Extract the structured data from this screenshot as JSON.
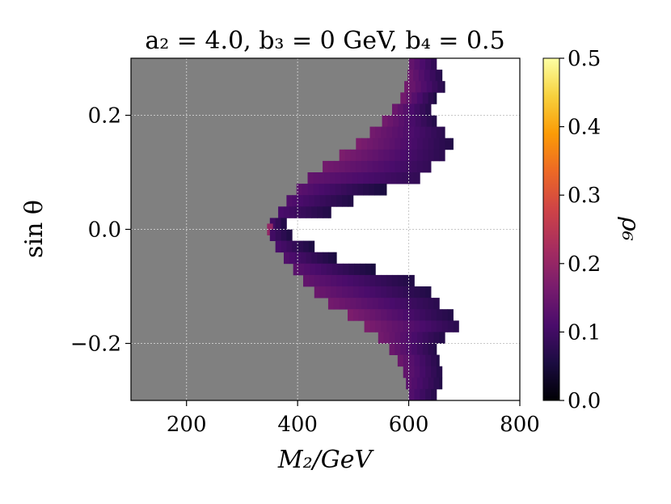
{
  "chart_data": {
    "type": "heatmap",
    "title": "a₂ = 4.0,  b₃ = 0  GeV,  b₄ = 0.5",
    "xlabel": "M₂/GeV",
    "ylabel": "sin θ",
    "xlim": [
      100,
      800
    ],
    "ylim": [
      -0.3,
      0.3
    ],
    "xticks": [
      200,
      400,
      600,
      800
    ],
    "xtick_labels": [
      "200",
      "400",
      "600",
      "800"
    ],
    "yticks": [
      -0.2,
      0.0,
      0.2
    ],
    "ytick_labels": [
      "−0.2",
      "0.0",
      "0.2"
    ],
    "grid": true,
    "colorbar": {
      "label": "ρ₆",
      "range": [
        0.0,
        0.5
      ],
      "ticks": [
        0.0,
        0.1,
        0.2,
        0.3,
        0.4,
        0.5
      ],
      "tick_labels": [
        "0.0",
        "0.1",
        "0.2",
        "0.3",
        "0.4",
        "0.5"
      ],
      "colormap": [
        "#000004",
        "#1b0c41",
        "#4a0c6b",
        "#781c6d",
        "#a52c60",
        "#cf4446",
        "#ed6925",
        "#fb9b06",
        "#f7d13d",
        "#fcffa4"
      ]
    },
    "excluded_region": {
      "color": "#808080",
      "description": "excluded (grey) region"
    },
    "allowed_band": {
      "note": "approximate extents of colored region per sinθ row: [sinθ, M2_min, M2_max, ρ₆ at inner edge, ρ₆ at outer edge]",
      "rows": [
        [
          0.29,
          600,
          650,
          0.14,
          0.07
        ],
        [
          0.27,
          598,
          660,
          0.15,
          0.06
        ],
        [
          0.25,
          592,
          665,
          0.16,
          0.06
        ],
        [
          0.23,
          585,
          650,
          0.16,
          0.05
        ],
        [
          0.21,
          570,
          640,
          0.15,
          0.06
        ],
        [
          0.19,
          552,
          650,
          0.16,
          0.06
        ],
        [
          0.17,
          530,
          665,
          0.16,
          0.07
        ],
        [
          0.15,
          505,
          680,
          0.17,
          0.06
        ],
        [
          0.13,
          475,
          665,
          0.17,
          0.07
        ],
        [
          0.11,
          445,
          640,
          0.16,
          0.08
        ],
        [
          0.09,
          418,
          620,
          0.14,
          0.08
        ],
        [
          0.07,
          398,
          560,
          0.13,
          0.05
        ],
        [
          0.05,
          380,
          500,
          0.12,
          0.06
        ],
        [
          0.03,
          365,
          460,
          0.11,
          0.06
        ],
        [
          0.01,
          350,
          380,
          0.1,
          0.05
        ],
        [
          0.0,
          345,
          355,
          0.2,
          0.15
        ],
        [
          -0.01,
          350,
          390,
          0.1,
          0.05
        ],
        [
          -0.03,
          360,
          430,
          0.11,
          0.05
        ],
        [
          -0.05,
          375,
          470,
          0.12,
          0.05
        ],
        [
          -0.07,
          392,
          540,
          0.13,
          0.05
        ],
        [
          -0.09,
          410,
          610,
          0.14,
          0.06
        ],
        [
          -0.11,
          430,
          640,
          0.15,
          0.06
        ],
        [
          -0.13,
          455,
          655,
          0.16,
          0.07
        ],
        [
          -0.15,
          490,
          680,
          0.17,
          0.06
        ],
        [
          -0.17,
          520,
          690,
          0.17,
          0.07
        ],
        [
          -0.19,
          545,
          665,
          0.16,
          0.06
        ],
        [
          -0.21,
          565,
          650,
          0.15,
          0.06
        ],
        [
          -0.23,
          580,
          655,
          0.15,
          0.06
        ],
        [
          -0.25,
          590,
          660,
          0.14,
          0.06
        ],
        [
          -0.27,
          595,
          660,
          0.13,
          0.06
        ],
        [
          -0.29,
          600,
          650,
          0.12,
          0.06
        ]
      ]
    }
  }
}
